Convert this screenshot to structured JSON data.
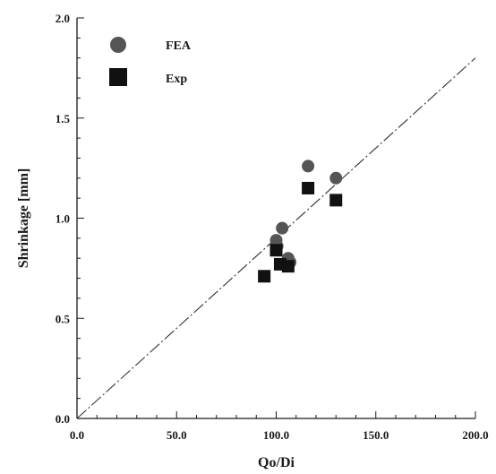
{
  "chart_data": {
    "type": "scatter",
    "xlabel": "Qo/Di",
    "ylabel": "Shrinkage [mm]",
    "xlim": [
      0,
      200
    ],
    "ylim": [
      0,
      2.0
    ],
    "x_ticks": [
      0,
      50,
      100,
      150,
      200
    ],
    "x_tick_labels": [
      "0.0",
      "50.0",
      "100.0",
      "150.0",
      "200.0"
    ],
    "y_ticks": [
      0,
      0.5,
      1.0,
      1.5,
      2.0
    ],
    "y_tick_labels": [
      "0.0",
      "0.5",
      "1.0",
      "1.5",
      "2.0"
    ],
    "grid": false,
    "legend_position": "top-left",
    "series": [
      {
        "name": "FEA",
        "marker": "circle",
        "color": "#555555",
        "points": [
          {
            "x": 100,
            "y": 0.89
          },
          {
            "x": 100.5,
            "y": 0.86
          },
          {
            "x": 103,
            "y": 0.95
          },
          {
            "x": 106,
            "y": 0.8
          },
          {
            "x": 107,
            "y": 0.78
          },
          {
            "x": 116,
            "y": 1.26
          },
          {
            "x": 130,
            "y": 1.2
          }
        ]
      },
      {
        "name": "Exp",
        "marker": "square",
        "color": "#111111",
        "points": [
          {
            "x": 94,
            "y": 0.71
          },
          {
            "x": 100,
            "y": 0.84
          },
          {
            "x": 102,
            "y": 0.77
          },
          {
            "x": 106,
            "y": 0.76
          },
          {
            "x": 116,
            "y": 1.15
          },
          {
            "x": 130,
            "y": 1.09
          }
        ]
      }
    ],
    "reference_line": {
      "style": "dash-dot",
      "color": "#333333",
      "points": [
        {
          "x": 0,
          "y": 0
        },
        {
          "x": 200,
          "y": 1.8
        }
      ]
    }
  }
}
